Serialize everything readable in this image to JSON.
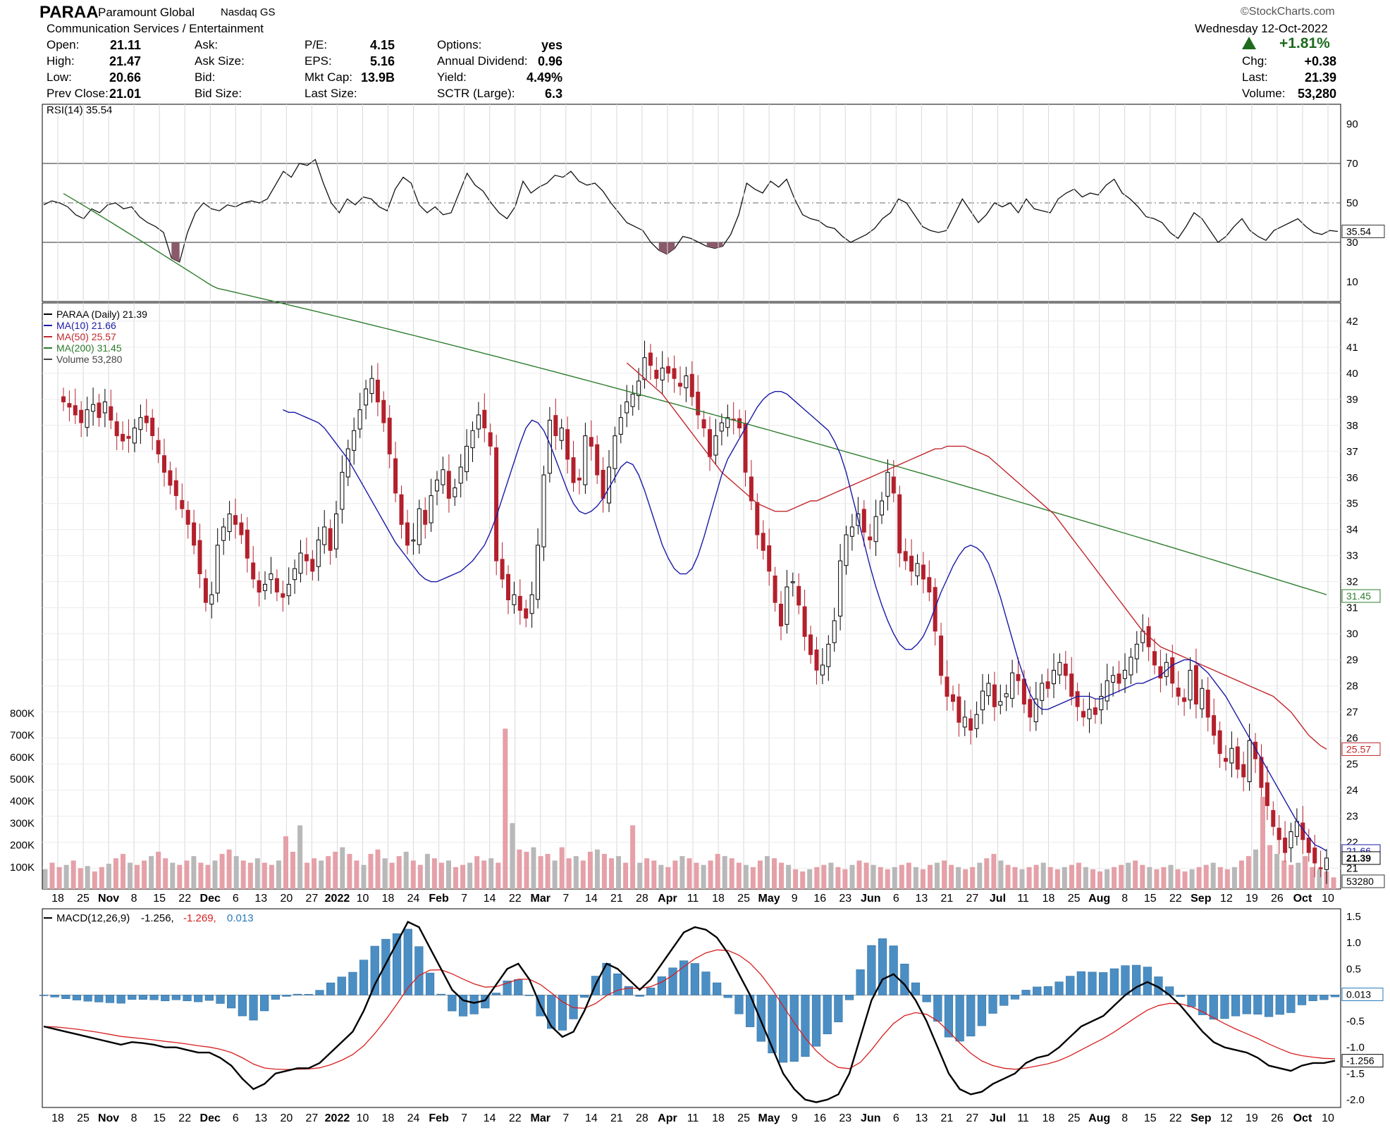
{
  "header": {
    "symbol": "PARAA",
    "company": "Paramount Global",
    "exchange": "Nasdaq GS",
    "sector": "Communication Services / Entertainment",
    "credit": "©StockCharts.com",
    "date": "Wednesday  12-Oct-2022",
    "change_pct": "+1.81%",
    "stats_col1": [
      {
        "label": "Open:",
        "value": "21.11"
      },
      {
        "label": "High:",
        "value": "21.47"
      },
      {
        "label": "Low:",
        "value": "20.66"
      },
      {
        "label": "Prev Close:",
        "value": "21.01"
      }
    ],
    "stats_col2": [
      {
        "label": "Ask:",
        "value": ""
      },
      {
        "label": "Ask Size:",
        "value": ""
      },
      {
        "label": "Bid:",
        "value": ""
      },
      {
        "label": "Bid Size:",
        "value": ""
      }
    ],
    "stats_col3": [
      {
        "label": "P/E:",
        "value": "4.15"
      },
      {
        "label": "EPS:",
        "value": "5.16"
      },
      {
        "label": "Mkt Cap:",
        "value": "13.9B"
      },
      {
        "label": "Last Size:",
        "value": ""
      }
    ],
    "stats_col4": [
      {
        "label": "Options:",
        "value": "yes"
      },
      {
        "label": "Annual Dividend:",
        "value": "0.96"
      },
      {
        "label": "Yield:",
        "value": "4.49%"
      },
      {
        "label": "SCTR (Large):",
        "value": "6.3"
      }
    ],
    "stats_col5": [
      {
        "label": "Chg:",
        "value": "+0.38"
      },
      {
        "label": "Last:",
        "value": "21.39"
      },
      {
        "label": "Volume:",
        "value": "53,280"
      }
    ],
    "colors": {
      "up": "#1e6b1e"
    }
  },
  "chart_data": [
    {
      "type": "line",
      "panel": "RSI",
      "legend": "RSI(14) 35.54",
      "y_ticks": [
        90,
        70,
        50,
        30,
        10
      ],
      "ylim": [
        0,
        100
      ],
      "reference_lines": [
        70,
        50,
        30
      ],
      "last_value_label": "35.54",
      "values": [
        49,
        51,
        50,
        48,
        44,
        42,
        47,
        45,
        49,
        50,
        47,
        48,
        43,
        40,
        38,
        35,
        22,
        20,
        35,
        45,
        50,
        47,
        46,
        49,
        48,
        50,
        51,
        50,
        52,
        59,
        66,
        63,
        70,
        69,
        72,
        60,
        50,
        45,
        52,
        49,
        53,
        52,
        48,
        46,
        57,
        63,
        60,
        49,
        45,
        48,
        44,
        45,
        55,
        65,
        59,
        56,
        50,
        45,
        42,
        48,
        61,
        55,
        58,
        60,
        64,
        63,
        66,
        61,
        59,
        60,
        56,
        50,
        45,
        40,
        38,
        36,
        30,
        26,
        24,
        27,
        33,
        32,
        30,
        28,
        27,
        28,
        34,
        44,
        60,
        57,
        55,
        61,
        58,
        62,
        52,
        44,
        42,
        41,
        38,
        37,
        33,
        30,
        32,
        34,
        37,
        42,
        45,
        52,
        50,
        44,
        38,
        36,
        35,
        36,
        44,
        52,
        46,
        40,
        44,
        50,
        48,
        50,
        45,
        52,
        47,
        46,
        45,
        52,
        55,
        57,
        53,
        55,
        54,
        59,
        62,
        55,
        52,
        48,
        43,
        42,
        40,
        35,
        32,
        38,
        45,
        42,
        36,
        30,
        33,
        38,
        42,
        36,
        33,
        31,
        36,
        38,
        40,
        42,
        38,
        35,
        34,
        36,
        35.54
      ]
    },
    {
      "type": "candlestick",
      "panel": "Price",
      "legend": [
        {
          "text": "PARAA (Daily) 21.39",
          "color": "#000000"
        },
        {
          "text": "MA(10) 21.66",
          "color": "#1a1aa6"
        },
        {
          "text": "MA(50) 25.57",
          "color": "#c0282e"
        },
        {
          "text": "MA(200) 31.45",
          "color": "#2e7d2e"
        },
        {
          "text": "Volume 53,280",
          "color": "#444444"
        }
      ],
      "y_ticks": [
        42,
        41,
        40,
        39,
        38,
        37,
        36,
        35,
        34,
        33,
        32,
        31,
        30,
        29,
        28,
        27,
        26,
        25,
        24,
        23,
        22,
        21
      ],
      "ylim": [
        20.2,
        42.7
      ],
      "start_date": "2021-10-15",
      "end_date": "2022-10-12",
      "x_labels": [
        "18",
        "25",
        "Nov",
        "8",
        "15",
        "22",
        "Dec",
        "6",
        "13",
        "20",
        "27",
        "2022",
        "10",
        "18",
        "24",
        "Feb",
        "7",
        "14",
        "22",
        "Mar",
        "7",
        "14",
        "21",
        "28",
        "Apr",
        "11",
        "18",
        "25",
        "May",
        "9",
        "16",
        "23",
        "Jun",
        "6",
        "13",
        "21",
        "27",
        "Jul",
        "11",
        "18",
        "25",
        "Aug",
        "8",
        "15",
        "22",
        "Sep",
        "12",
        "19",
        "26",
        "Oct",
        "10"
      ],
      "close": [
        38.9,
        38.7,
        38.4,
        38.1,
        38.6,
        38.8,
        38.3,
        38.9,
        38.2,
        37.6,
        37.4,
        37.5,
        37.9,
        38.3,
        38.1,
        37.6,
        36.9,
        36.2,
        35.7,
        35.3,
        34.8,
        34.2,
        33.4,
        32.3,
        31.2,
        31.5,
        33.4,
        34.1,
        34.6,
        34.2,
        33.8,
        32.9,
        32.1,
        31.6,
        31.9,
        32.3,
        31.6,
        31.4,
        31.9,
        32.5,
        33.1,
        32.8,
        32.4,
        33.6,
        34.1,
        33.2,
        34.6,
        36.2,
        37.1,
        37.8,
        38.6,
        39.4,
        39.8,
        38.9,
        38.1,
        36.9,
        35.4,
        34.2,
        33.4,
        33.6,
        34.8,
        34.2,
        35.3,
        35.9,
        36.3,
        35.2,
        35.6,
        36.4,
        37.2,
        37.8,
        38.4,
        37.9,
        37.2,
        32.8,
        32.1,
        31.3,
        31.5,
        30.9,
        30.6,
        31.5,
        33.4,
        36.1,
        38.2,
        37.6,
        37.9,
        36.7,
        35.8,
        35.9,
        37.6,
        37.2,
        36.1,
        35.2,
        36.4,
        37.6,
        38.3,
        38.9,
        39.2,
        39.7,
        40.6,
        40.3,
        39.8,
        40.2,
        40.0,
        39.8,
        39.5,
        39.9,
        39.1,
        38.4,
        37.9,
        36.8,
        37.6,
        38.1,
        38.3,
        38.2,
        37.9,
        36.2,
        35.1,
        33.8,
        33.2,
        32.4,
        31.2,
        30.3,
        31.8,
        32.0,
        31.1,
        29.9,
        29.2,
        28.6,
        28.8,
        29.6,
        30.5,
        32.8,
        33.8,
        34.1,
        34.6,
        33.9,
        33.6,
        34.5,
        35.1,
        36.2,
        35.4,
        33.1,
        32.8,
        32.4,
        32.7,
        32.1,
        31.6,
        30.1,
        28.4,
        27.6,
        27.4,
        26.6,
        26.8,
        26.3,
        26.9,
        27.8,
        28.1,
        27.2,
        27.4,
        27.7,
        28.5,
        28.2,
        27.3,
        26.8,
        27.5,
        28.1,
        27.9,
        28.6,
        28.9,
        28.4,
        27.6,
        27.2,
        26.8,
        27.1,
        26.9,
        27.6,
        28.2,
        28.4,
        28.1,
        28.6,
        29.1,
        29.6,
        30.1,
        29.5,
        28.8,
        28.3,
        28.9,
        28.1,
        27.6,
        27.4,
        28.6,
        27.3,
        27.9,
        26.8,
        26.1,
        25.4,
        25.1,
        25.6,
        24.8,
        24.5,
        25.9,
        25.2,
        24.1,
        23.4,
        22.6,
        22.1,
        21.6,
        22.4,
        22.8,
        22.1,
        21.6,
        21.2,
        21.01,
        21.39
      ],
      "ma10": [
        38.6,
        38.5,
        38.5,
        38.4,
        38.3,
        38.2,
        38.1,
        37.9,
        37.6,
        37.3,
        37.0,
        36.7,
        36.3,
        35.9,
        35.5,
        35.1,
        34.7,
        34.3,
        33.9,
        33.5,
        33.2,
        32.9,
        32.6,
        32.3,
        32.1,
        32.0,
        32.0,
        32.1,
        32.2,
        32.3,
        32.4,
        32.6,
        32.8,
        33.1,
        33.4,
        33.9,
        34.5,
        35.2,
        35.9,
        36.6,
        37.3,
        37.9,
        38.2,
        38.1,
        37.8,
        37.3,
        36.7,
        36.1,
        35.5,
        35.0,
        34.7,
        34.6,
        34.7,
        34.9,
        35.2,
        35.6,
        36.0,
        36.4,
        36.6,
        36.5,
        36.1,
        35.5,
        34.8,
        34.1,
        33.4,
        32.9,
        32.5,
        32.3,
        32.3,
        32.5,
        33.0,
        33.7,
        34.5,
        35.3,
        36.1,
        36.7,
        37.1,
        37.5,
        37.9,
        38.3,
        38.7,
        39.0,
        39.2,
        39.3,
        39.3,
        39.2,
        39.0,
        38.8,
        38.6,
        38.4,
        38.2,
        38.0,
        37.8,
        37.4,
        36.9,
        36.2,
        35.3,
        34.4,
        33.5,
        32.6,
        31.8,
        31.1,
        30.5,
        30.0,
        29.6,
        29.4,
        29.4,
        29.6,
        29.9,
        30.4,
        31.0,
        31.6,
        32.1,
        32.6,
        33.0,
        33.3,
        33.4,
        33.3,
        33.1,
        32.7,
        32.1,
        31.4,
        30.6,
        29.8,
        29.0,
        28.3,
        27.7,
        27.3,
        27.1,
        27.1,
        27.2,
        27.3,
        27.4,
        27.5,
        27.6,
        27.6,
        27.6,
        27.5,
        27.5,
        27.6,
        27.7,
        27.8,
        27.9,
        28.0,
        28.1,
        28.1,
        28.2,
        28.3,
        28.4,
        28.6,
        28.8,
        28.9,
        29.0,
        29.0,
        28.9,
        28.7,
        28.5,
        28.2,
        27.9,
        27.6,
        27.2,
        26.8,
        26.4,
        26.0,
        25.6,
        25.2,
        24.8,
        24.4,
        24.0,
        23.6,
        23.2,
        22.8,
        22.5,
        22.2,
        21.9,
        21.8,
        21.66
      ],
      "ma50": [
        40.4,
        40.2,
        40.0,
        39.8,
        39.6,
        39.4,
        39.2,
        38.9,
        38.6,
        38.3,
        38.0,
        37.7,
        37.4,
        37.1,
        36.8,
        36.5,
        36.2,
        36.0,
        35.8,
        35.6,
        35.4,
        35.2,
        35.0,
        34.9,
        34.8,
        34.7,
        34.7,
        34.7,
        34.8,
        34.9,
        35.0,
        35.1,
        35.1,
        35.2,
        35.3,
        35.4,
        35.5,
        35.6,
        35.7,
        35.8,
        35.9,
        36.0,
        36.1,
        36.2,
        36.3,
        36.4,
        36.5,
        36.6,
        36.7,
        36.8,
        36.9,
        37.0,
        37.1,
        37.1,
        37.2,
        37.2,
        37.2,
        37.2,
        37.1,
        37.0,
        36.9,
        36.8,
        36.6,
        36.4,
        36.2,
        36.0,
        35.8,
        35.6,
        35.4,
        35.2,
        35.0,
        34.8,
        34.6,
        34.3,
        34.0,
        33.7,
        33.4,
        33.1,
        32.8,
        32.5,
        32.2,
        31.9,
        31.6,
        31.3,
        31.0,
        30.7,
        30.4,
        30.1,
        29.9,
        29.7,
        29.5,
        29.4,
        29.3,
        29.2,
        29.1,
        29.0,
        28.9,
        28.8,
        28.7,
        28.6,
        28.5,
        28.4,
        28.3,
        28.2,
        28.1,
        28.0,
        27.9,
        27.8,
        27.7,
        27.6,
        27.4,
        27.2,
        27.0,
        26.7,
        26.4,
        26.1,
        25.9,
        25.7,
        25.57
      ]
    },
    {
      "type": "bar",
      "panel": "Volume",
      "y_ticks": [
        "800K",
        "700K",
        "600K",
        "500K",
        "400K",
        "300K",
        "200K",
        "100K"
      ],
      "ylim": [
        0,
        840000
      ],
      "last_value_label": "53280",
      "values": [
        90,
        120,
        100,
        110,
        130,
        95,
        105,
        80,
        100,
        115,
        140,
        160,
        120,
        110,
        130,
        150,
        170,
        140,
        120,
        110,
        130,
        150,
        120,
        110,
        130,
        160,
        180,
        150,
        130,
        120,
        140,
        120,
        110,
        130,
        240,
        170,
        290,
        120,
        140,
        130,
        150,
        170,
        190,
        160,
        130,
        110,
        160,
        180,
        140,
        120,
        150,
        170,
        130,
        110,
        160,
        140,
        120,
        130,
        100,
        110,
        120,
        150,
        130,
        140,
        120,
        730,
        300,
        180,
        170,
        190,
        150,
        160,
        130,
        190,
        140,
        150,
        130,
        170,
        180,
        160,
        140,
        150,
        120,
        290,
        120,
        140,
        130,
        110,
        100,
        130,
        150,
        140,
        120,
        110,
        130,
        160,
        150,
        140,
        120,
        110,
        100,
        130,
        150,
        140,
        120,
        110,
        90,
        80,
        90,
        100,
        110,
        120,
        100,
        90,
        110,
        130,
        120,
        110,
        100,
        90,
        100,
        110,
        120,
        100,
        90,
        110,
        120,
        130,
        110,
        100,
        90,
        100,
        120,
        140,
        160,
        130,
        110,
        100,
        90,
        100,
        110,
        120,
        100,
        90,
        100,
        110,
        120,
        100,
        90,
        80,
        90,
        100,
        110,
        120,
        130,
        110,
        100,
        90,
        100,
        110,
        90,
        80,
        90,
        100,
        110,
        120,
        100,
        90,
        100,
        130,
        150,
        180,
        420,
        200,
        160,
        130,
        110,
        120,
        150,
        100,
        90,
        80,
        53.28
      ]
    },
    {
      "type": "line",
      "panel": "MACD",
      "legend": [
        {
          "text": "MACD(12,26,9)",
          "color": "#000000"
        },
        {
          "text": "-1.256,",
          "color": "#000000"
        },
        {
          "text": "-1.269,",
          "color": "#d81e1e"
        },
        {
          "text": "0.013",
          "color": "#2a7ab8"
        }
      ],
      "y_ticks": [
        "1.5",
        "1.0",
        "0.5",
        "0",
        "-0.5",
        "-1.0",
        "-1.5",
        "-2.0"
      ],
      "ylim": [
        -2.15,
        1.65
      ],
      "macd_line": [
        -0.6,
        -0.65,
        -0.7,
        -0.75,
        -0.8,
        -0.85,
        -0.9,
        -0.95,
        -0.9,
        -0.92,
        -0.95,
        -1.0,
        -1.0,
        -1.05,
        -1.1,
        -1.1,
        -1.2,
        -1.35,
        -1.6,
        -1.8,
        -1.7,
        -1.5,
        -1.45,
        -1.4,
        -1.4,
        -1.3,
        -1.1,
        -0.9,
        -0.7,
        -0.3,
        0.2,
        0.6,
        1.0,
        1.4,
        1.3,
        0.9,
        0.5,
        0.1,
        -0.1,
        -0.15,
        -0.1,
        0.2,
        0.5,
        0.6,
        0.3,
        -0.2,
        -0.6,
        -0.8,
        -0.7,
        -0.3,
        0.2,
        0.6,
        0.5,
        0.3,
        0.1,
        0.3,
        0.6,
        0.9,
        1.2,
        1.3,
        1.25,
        1.1,
        0.8,
        0.4,
        0.0,
        -0.5,
        -1.0,
        -1.5,
        -1.8,
        -2.0,
        -2.05,
        -2.0,
        -1.9,
        -1.5,
        -0.8,
        -0.1,
        0.3,
        0.4,
        0.2,
        -0.1,
        -0.5,
        -1.0,
        -1.5,
        -1.8,
        -1.9,
        -1.85,
        -1.7,
        -1.6,
        -1.5,
        -1.3,
        -1.2,
        -1.15,
        -1.0,
        -0.8,
        -0.6,
        -0.5,
        -0.4,
        -0.2,
        0.0,
        0.15,
        0.25,
        0.15,
        0.0,
        -0.2,
        -0.45,
        -0.7,
        -0.9,
        -1.0,
        -1.05,
        -1.1,
        -1.2,
        -1.35,
        -1.4,
        -1.45,
        -1.35,
        -1.3,
        -1.3,
        -1.256
      ]
    }
  ]
}
